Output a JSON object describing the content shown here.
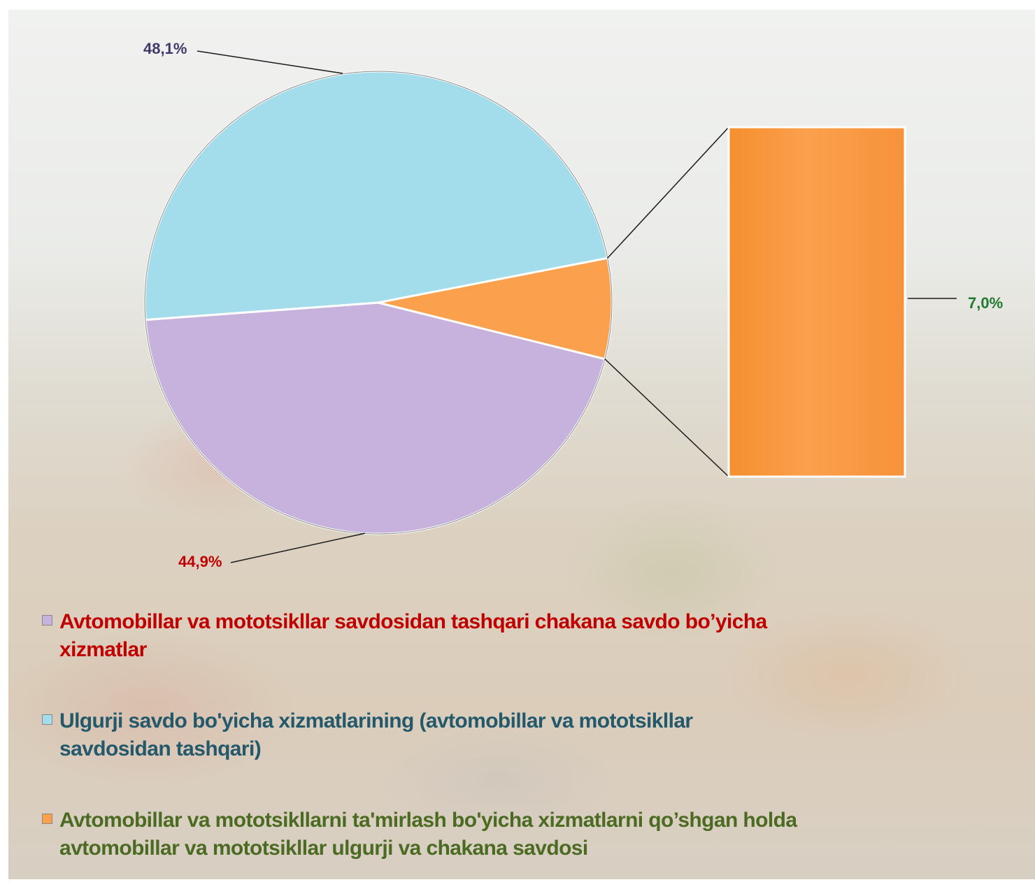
{
  "colors": {
    "retail": "#c6b2dd",
    "wholesale": "#a3dceb",
    "auto": "#fba04d",
    "retail_label": "#c00000",
    "wholesale_label": "#3f3a6a",
    "auto_label": "#1e7b2e",
    "legend_retail": "#c00000",
    "legend_wholesale": "#23596b",
    "legend_auto": "#4b6b22"
  },
  "chart_data": {
    "type": "pie",
    "subtype": "bar-of-pie",
    "slices": [
      {
        "name": "Avtomobillar va mototsikllar savdosidan tashqari chakana savdo bo’yicha xizmatlar",
        "value": 44.9,
        "label": "44,9%",
        "color": "#c6b2dd"
      },
      {
        "name": "Ulgurji savdo bo'yicha xizmatlarining (avtomobillar va mototsikllar savdosidan tashqari)",
        "value": 48.1,
        "label": "48,1%",
        "color": "#a3dceb"
      },
      {
        "name": "Avtomobillar va mototsikllarni ta'mirlash bo'yicha xizmatlarni qo’shgan holda avtomobillar va mototsikllar ulgurji va chakana savdosi",
        "value": 7.0,
        "label": "7,0%",
        "color": "#fba04d"
      }
    ],
    "legend_position": "bottom"
  },
  "legend": {
    "items": [
      {
        "line1": "Avtomobillar va mototsikllar savdosidan tashqari chakana savdo bo’yicha",
        "line2": "xizmatlar"
      },
      {
        "line1": "Ulgurji savdo bo'yicha xizmatlarining (avtomobillar va mototsikllar",
        "line2": "savdosidan tashqari)"
      },
      {
        "line1": "Avtomobillar va mototsikllarni ta'mirlash bo'yicha xizmatlarni qo’shgan holda",
        "line2": "avtomobillar va mototsikllar ulgurji va chakana savdosi"
      }
    ]
  }
}
